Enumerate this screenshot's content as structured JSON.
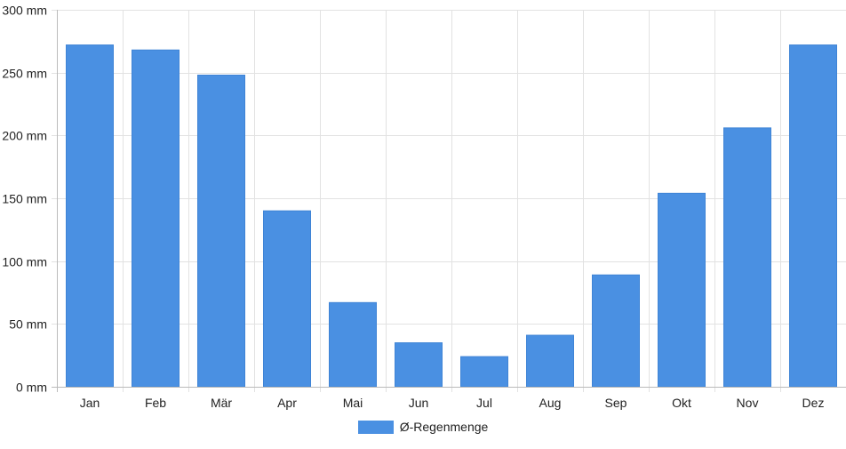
{
  "chart_data": {
    "type": "bar",
    "categories": [
      "Jan",
      "Feb",
      "Mär",
      "Apr",
      "Mai",
      "Jun",
      "Jul",
      "Aug",
      "Sep",
      "Okt",
      "Nov",
      "Dez"
    ],
    "series": [
      {
        "name": "Ø-Regenmenge",
        "values": [
          272,
          268,
          248,
          140,
          67,
          35,
          24,
          41,
          89,
          154,
          206,
          272
        ],
        "color": "#4a90e2"
      }
    ],
    "y_ticks": [
      0,
      50,
      100,
      150,
      200,
      250,
      300
    ],
    "y_unit": " mm",
    "ylim": [
      0,
      300
    ],
    "grid": true,
    "legend_position": "bottom-center",
    "title": "",
    "xlabel": "",
    "ylabel": ""
  }
}
